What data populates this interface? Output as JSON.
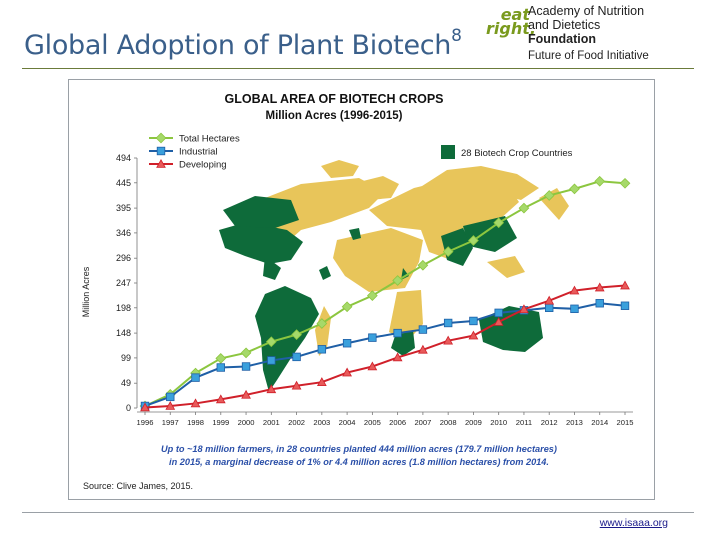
{
  "slide": {
    "title": "Global Adoption of Plant Biotech",
    "title_superscript": "8",
    "footer_link": "www.isaaa.org"
  },
  "logo": {
    "mark_top": "eat",
    "mark_bottom": "right.",
    "org_line1": "Academy of Nutrition",
    "org_line2": "and Dietetics",
    "org_line3": "Foundation",
    "org_line4": "Future of Food Initiative"
  },
  "colors": {
    "total": "#8cc63f",
    "total_marker": "#a6d96a",
    "industrial": "#1f5fa6",
    "industrial_marker": "#3aa0dc",
    "developing": "#d0202a",
    "developing_marker": "#e85a5a",
    "biotech_land": "#0e6b3a",
    "other_land": "#e8c55a",
    "footnote_blue": "#2a4fa8"
  },
  "chart_data": {
    "type": "line",
    "title": "GLOBAL AREA OF BIOTECH CROPS",
    "subtitle": "Million Acres (1996-2015)",
    "ylabel": "Million Acres",
    "xlabel": "",
    "ylim": [
      0,
      494
    ],
    "y_ticks": [
      0,
      49,
      99,
      148,
      198,
      247,
      296,
      346,
      395,
      445,
      494
    ],
    "x": [
      "1996",
      "1997",
      "1998",
      "1999",
      "2000",
      "2001",
      "2002",
      "2003",
      "2004",
      "2005",
      "2006",
      "2007",
      "2008",
      "2009",
      "2010",
      "2011",
      "2012",
      "2013",
      "2014",
      "2015"
    ],
    "grid": false,
    "legend_position": "top-left",
    "series": [
      {
        "name": "Total Hectares",
        "values": [
          4,
          27,
          69,
          98,
          109,
          131,
          145,
          167,
          200,
          222,
          252,
          282,
          309,
          331,
          366,
          395,
          420,
          433,
          448,
          444
        ]
      },
      {
        "name": "Industrial",
        "values": [
          4,
          22,
          60,
          80,
          82,
          94,
          101,
          116,
          128,
          139,
          148,
          155,
          168,
          172,
          188,
          193,
          198,
          196,
          207,
          202
        ]
      },
      {
        "name": "Developing",
        "values": [
          1,
          4,
          9,
          17,
          26,
          37,
          44,
          51,
          70,
          82,
          100,
          115,
          133,
          143,
          170,
          195,
          212,
          232,
          238,
          242
        ]
      }
    ],
    "map_legend": "28 Biotech Crop Countries",
    "annotation": "Up to ~18 million farmers, in 28 countries planted 444 million acres (179.7 million hectares) in 2015, a marginal decrease of 1% or 4.4 million acres (1.8 million hectares) from 2014.",
    "source": "Source: Clive James, 2015."
  }
}
